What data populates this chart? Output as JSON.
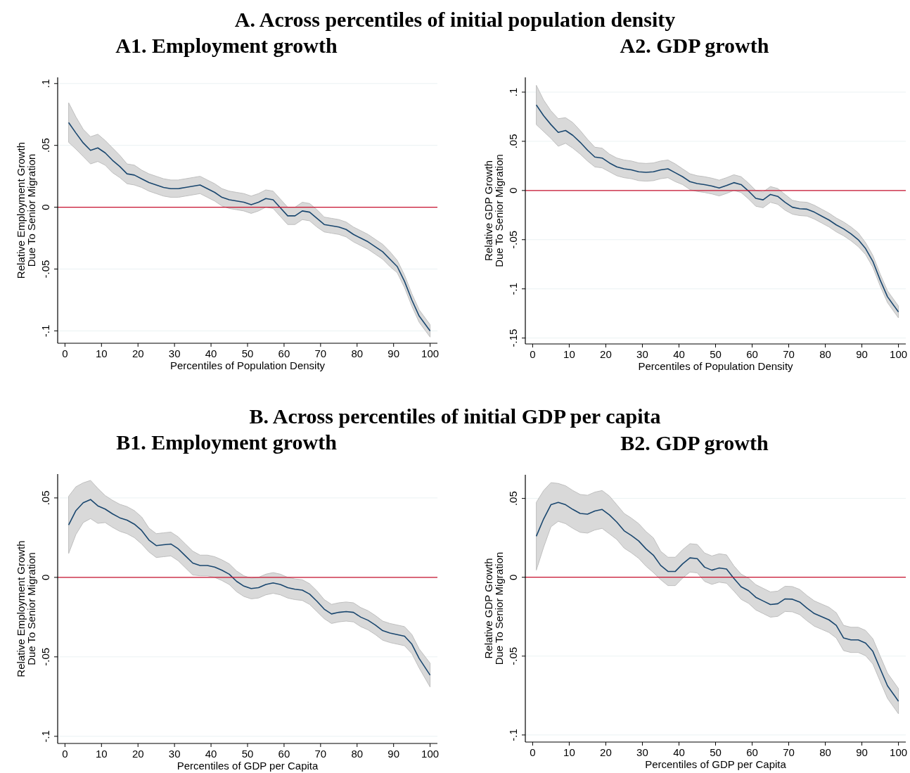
{
  "chart_data": [
    {
      "type": "line",
      "title": "A1. Employment growth",
      "annotations": [
        "A. Across percentiles of initial population density"
      ],
      "xlabel": "Percentiles of Population Density",
      "ylabel": "Relative Employment Growth\nDue To Senior Migration",
      "xlim": [
        -2,
        102
      ],
      "xticks": [
        0,
        10,
        20,
        30,
        40,
        50,
        60,
        70,
        80,
        90,
        100
      ],
      "ylim": [
        -0.11,
        0.105
      ],
      "yticks": [
        {
          "value": -0.1,
          "label": "-.1"
        },
        {
          "value": -0.05,
          "label": "-.05"
        },
        {
          "value": 0,
          "label": "0"
        },
        {
          "value": 0.05,
          "label": ".05"
        },
        {
          "value": 0.1,
          "label": ".1"
        }
      ],
      "grid": "y",
      "ref_lines": [
        {
          "axis": "y",
          "value": 0,
          "color": "#c8102e"
        }
      ],
      "x": [
        1,
        3,
        5,
        7,
        9,
        11,
        13,
        15,
        17,
        19,
        21,
        23,
        25,
        27,
        29,
        31,
        33,
        35,
        37,
        39,
        41,
        43,
        45,
        47,
        49,
        51,
        53,
        55,
        57,
        59,
        61,
        63,
        65,
        67,
        69,
        71,
        73,
        75,
        77,
        79,
        81,
        83,
        85,
        87,
        89,
        91,
        93,
        95,
        97,
        100
      ],
      "series": [
        {
          "color": "#1a476f",
          "values": [
            0.0685,
            0.06,
            0.052,
            0.046,
            0.048,
            0.044,
            0.038,
            0.033,
            0.027,
            0.026,
            0.023,
            0.02,
            0.018,
            0.016,
            0.015,
            0.015,
            0.016,
            0.017,
            0.018,
            0.015,
            0.012,
            0.008,
            0.006,
            0.005,
            0.004,
            0.002,
            0.004,
            0.007,
            0.006,
            -0.0005,
            -0.007,
            -0.007,
            -0.003,
            -0.004,
            -0.009,
            -0.014,
            -0.015,
            -0.016,
            -0.018,
            -0.022,
            -0.025,
            -0.028,
            -0.032,
            -0.036,
            -0.042,
            -0.048,
            -0.06,
            -0.075,
            -0.088,
            -0.1
          ],
          "lower": [
            0.0525,
            0.047,
            0.041,
            0.035,
            0.037,
            0.034,
            0.028,
            0.024,
            0.019,
            0.018,
            0.016,
            0.013,
            0.011,
            0.009,
            0.008,
            0.008,
            0.009,
            0.01,
            0.011,
            0.008,
            0.005,
            0.001,
            -0.001,
            -0.002,
            -0.003,
            -0.005,
            -0.003,
            0,
            -0.001,
            -0.0075,
            -0.014,
            -0.014,
            -0.01,
            -0.011,
            -0.016,
            -0.02,
            -0.021,
            -0.022,
            -0.024,
            -0.028,
            -0.031,
            -0.034,
            -0.038,
            -0.042,
            -0.048,
            -0.053,
            -0.065,
            -0.08,
            -0.093,
            -0.105
          ],
          "upper": [
            0.0845,
            0.073,
            0.063,
            0.057,
            0.059,
            0.054,
            0.048,
            0.042,
            0.035,
            0.034,
            0.03,
            0.027,
            0.025,
            0.023,
            0.022,
            0.022,
            0.023,
            0.024,
            0.025,
            0.022,
            0.019,
            0.015,
            0.013,
            0.012,
            0.011,
            0.009,
            0.011,
            0.014,
            0.013,
            0.0065,
            0,
            0,
            0.004,
            0.003,
            -0.002,
            -0.008,
            -0.009,
            -0.01,
            -0.012,
            -0.016,
            -0.019,
            -0.022,
            -0.026,
            -0.03,
            -0.036,
            -0.043,
            -0.055,
            -0.07,
            -0.083,
            -0.095
          ]
        }
      ]
    },
    {
      "type": "line",
      "title": "A2. GDP growth",
      "xlabel": "Percentiles of Population Density",
      "ylabel": "Relative GDP Growth\nDue To Senior Migration",
      "xlim": [
        -2,
        102
      ],
      "xticks": [
        0,
        10,
        20,
        30,
        40,
        50,
        60,
        70,
        80,
        90,
        100
      ],
      "ylim": [
        -0.156,
        0.115
      ],
      "yticks": [
        {
          "value": -0.15,
          "label": "-.15"
        },
        {
          "value": -0.1,
          "label": "-.1"
        },
        {
          "value": -0.05,
          "label": "-.05"
        },
        {
          "value": 0,
          "label": "0"
        },
        {
          "value": 0.05,
          "label": ".05"
        },
        {
          "value": 0.1,
          "label": ".1"
        }
      ],
      "grid": "y",
      "ref_lines": [
        {
          "axis": "y",
          "value": 0,
          "color": "#c8102e"
        }
      ],
      "x": [
        1,
        3,
        5,
        7,
        9,
        11,
        13,
        15,
        17,
        19,
        21,
        23,
        25,
        27,
        29,
        31,
        33,
        35,
        37,
        39,
        41,
        43,
        45,
        47,
        49,
        51,
        53,
        55,
        57,
        59,
        61,
        63,
        65,
        67,
        69,
        71,
        73,
        75,
        77,
        79,
        81,
        83,
        85,
        87,
        89,
        91,
        93,
        95,
        97,
        100
      ],
      "series": [
        {
          "color": "#1a476f",
          "values": [
            0.087,
            0.076,
            0.067,
            0.059,
            0.061,
            0.056,
            0.049,
            0.041,
            0.034,
            0.033,
            0.028,
            0.024,
            0.022,
            0.021,
            0.019,
            0.0185,
            0.019,
            0.021,
            0.022,
            0.018,
            0.014,
            0.009,
            0.007,
            0.006,
            0.0045,
            0.0025,
            0.005,
            0.008,
            0.006,
            -0.0005,
            -0.008,
            -0.0095,
            -0.004,
            -0.006,
            -0.012,
            -0.017,
            -0.0185,
            -0.019,
            -0.022,
            -0.026,
            -0.03,
            -0.035,
            -0.039,
            -0.044,
            -0.05,
            -0.059,
            -0.072,
            -0.091,
            -0.108,
            -0.1235
          ],
          "lower": [
            0.067,
            0.06,
            0.053,
            0.045,
            0.048,
            0.043,
            0.037,
            0.03,
            0.024,
            0.023,
            0.019,
            0.015,
            0.013,
            0.012,
            0.01,
            0.0095,
            0.01,
            0.012,
            0.013,
            0.009,
            0.006,
            0.001,
            -0.001,
            -0.002,
            -0.0035,
            -0.0055,
            -0.003,
            0,
            -0.002,
            -0.0085,
            -0.016,
            -0.0175,
            -0.012,
            -0.014,
            -0.02,
            -0.024,
            -0.0255,
            -0.026,
            -0.029,
            -0.033,
            -0.037,
            -0.042,
            -0.046,
            -0.051,
            -0.057,
            -0.065,
            -0.078,
            -0.097,
            -0.114,
            -0.1295
          ],
          "upper": [
            0.107,
            0.092,
            0.081,
            0.073,
            0.074,
            0.069,
            0.061,
            0.052,
            0.044,
            0.043,
            0.037,
            0.033,
            0.031,
            0.03,
            0.028,
            0.0275,
            0.028,
            0.03,
            0.031,
            0.027,
            0.022,
            0.017,
            0.015,
            0.014,
            0.0125,
            0.0105,
            0.013,
            0.016,
            0.014,
            0.0075,
            0,
            -0.0015,
            0.004,
            0.002,
            -0.004,
            -0.01,
            -0.0115,
            -0.012,
            -0.015,
            -0.019,
            -0.023,
            -0.028,
            -0.032,
            -0.037,
            -0.043,
            -0.053,
            -0.066,
            -0.085,
            -0.102,
            -0.1175
          ]
        }
      ]
    },
    {
      "type": "line",
      "title": "B1. Employment growth",
      "annotations": [
        "B. Across percentiles of initial GDP per capita"
      ],
      "xlabel": "Percentiles of GDP per Capita",
      "ylabel": "Relative Employment Growth\nDue To Senior Migration",
      "xlim": [
        -2,
        102
      ],
      "xticks": [
        0,
        10,
        20,
        30,
        40,
        50,
        60,
        70,
        80,
        90,
        100
      ],
      "ylim": [
        -0.1045,
        0.065
      ],
      "yticks": [
        {
          "value": -0.1,
          "label": "-.1"
        },
        {
          "value": -0.05,
          "label": "-.05"
        },
        {
          "value": 0,
          "label": "0"
        },
        {
          "value": 0.05,
          "label": ".05"
        }
      ],
      "grid": "y",
      "ref_lines": [
        {
          "axis": "y",
          "value": 0,
          "color": "#c8102e"
        }
      ],
      "x": [
        1,
        3,
        5,
        7,
        9,
        11,
        13,
        15,
        17,
        19,
        21,
        23,
        25,
        27,
        29,
        31,
        33,
        35,
        37,
        39,
        41,
        43,
        45,
        47,
        49,
        51,
        53,
        55,
        57,
        59,
        61,
        63,
        65,
        67,
        69,
        71,
        73,
        75,
        77,
        79,
        81,
        83,
        85,
        87,
        89,
        91,
        93,
        95,
        97,
        100
      ],
      "series": [
        {
          "color": "#1a476f",
          "values": [
            0.033,
            0.042,
            0.047,
            0.049,
            0.045,
            0.043,
            0.04,
            0.0375,
            0.036,
            0.0335,
            0.0295,
            0.0235,
            0.02,
            0.0205,
            0.021,
            0.018,
            0.0135,
            0.009,
            0.0075,
            0.0075,
            0.0065,
            0.0045,
            0.002,
            -0.0025,
            -0.0055,
            -0.007,
            -0.0065,
            -0.0045,
            -0.0035,
            -0.0045,
            -0.0065,
            -0.0075,
            -0.008,
            -0.0105,
            -0.015,
            -0.02,
            -0.023,
            -0.022,
            -0.0215,
            -0.022,
            -0.025,
            -0.027,
            -0.03,
            -0.0335,
            -0.035,
            -0.036,
            -0.037,
            -0.042,
            -0.051,
            -0.0615
          ],
          "lower": [
            0.015,
            0.027,
            0.0345,
            0.037,
            0.034,
            0.0345,
            0.0315,
            0.029,
            0.0275,
            0.025,
            0.021,
            0.016,
            0.0125,
            0.013,
            0.0135,
            0.0105,
            0.006,
            0.0015,
            0.001,
            0.001,
            0,
            -0.002,
            -0.0045,
            -0.009,
            -0.012,
            -0.0135,
            -0.013,
            -0.011,
            -0.01,
            -0.011,
            -0.013,
            -0.014,
            -0.0145,
            -0.017,
            -0.0215,
            -0.026,
            -0.029,
            -0.028,
            -0.0275,
            -0.028,
            -0.031,
            -0.033,
            -0.036,
            -0.0395,
            -0.041,
            -0.042,
            -0.043,
            -0.048,
            -0.057,
            -0.069
          ],
          "upper": [
            0.051,
            0.057,
            0.0595,
            0.061,
            0.056,
            0.0515,
            0.0485,
            0.046,
            0.0445,
            0.042,
            0.038,
            0.031,
            0.0275,
            0.028,
            0.0285,
            0.0255,
            0.021,
            0.0165,
            0.014,
            0.014,
            0.013,
            0.011,
            0.0085,
            0.004,
            0.001,
            -0.0005,
            0,
            0.002,
            0.003,
            0.002,
            0,
            -0.001,
            -0.0015,
            -0.004,
            -0.0085,
            -0.014,
            -0.017,
            -0.016,
            -0.0155,
            -0.016,
            -0.019,
            -0.021,
            -0.024,
            -0.0275,
            -0.029,
            -0.03,
            -0.031,
            -0.036,
            -0.045,
            -0.054
          ]
        }
      ]
    },
    {
      "type": "line",
      "title": "B2. GDP growth",
      "xlabel": "Percentiles of GDP per Capita",
      "ylabel": "Relative GDP Growth\nDue To Senior Migration",
      "xlim": [
        -2,
        102
      ],
      "xticks": [
        0,
        10,
        20,
        30,
        40,
        50,
        60,
        70,
        80,
        90,
        100
      ],
      "ylim": [
        -0.1045,
        0.065
      ],
      "yticks": [
        {
          "value": -0.1,
          "label": "-.1"
        },
        {
          "value": -0.05,
          "label": "-.05"
        },
        {
          "value": 0,
          "label": "0"
        },
        {
          "value": 0.05,
          "label": ".05"
        }
      ],
      "grid": "y",
      "ref_lines": [
        {
          "axis": "y",
          "value": 0,
          "color": "#c8102e"
        }
      ],
      "x": [
        1,
        3,
        5,
        7,
        9,
        11,
        13,
        15,
        17,
        19,
        21,
        23,
        25,
        27,
        29,
        31,
        33,
        35,
        37,
        39,
        41,
        43,
        45,
        47,
        49,
        51,
        53,
        55,
        57,
        59,
        61,
        63,
        65,
        67,
        69,
        71,
        73,
        75,
        77,
        79,
        81,
        83,
        85,
        87,
        89,
        91,
        93,
        95,
        97,
        100
      ],
      "series": [
        {
          "color": "#1a476f",
          "values": [
            0.026,
            0.037,
            0.046,
            0.0475,
            0.046,
            0.043,
            0.0405,
            0.04,
            0.042,
            0.043,
            0.0395,
            0.035,
            0.0295,
            0.0265,
            0.023,
            0.018,
            0.014,
            0.0075,
            0.0037,
            0.0037,
            0.0085,
            0.0123,
            0.0118,
            0.0064,
            0.0045,
            0.0059,
            0.0052,
            -0.0007,
            -0.006,
            -0.0085,
            -0.0127,
            -0.015,
            -0.0173,
            -0.0168,
            -0.0137,
            -0.0139,
            -0.0157,
            -0.0196,
            -0.023,
            -0.025,
            -0.027,
            -0.0305,
            -0.0385,
            -0.0397,
            -0.0397,
            -0.0417,
            -0.047,
            -0.058,
            -0.0688,
            -0.0786
          ],
          "lower": [
            0.0045,
            0.019,
            0.032,
            0.0355,
            0.034,
            0.031,
            0.0285,
            0.028,
            0.03,
            0.031,
            0.0275,
            0.024,
            0.0185,
            0.0155,
            0.012,
            0.007,
            0.003,
            -0.0015,
            -0.0053,
            -0.0053,
            -0.0005,
            0.0033,
            0.0028,
            -0.0026,
            -0.0045,
            -0.0031,
            -0.0038,
            -0.0087,
            -0.014,
            -0.0165,
            -0.0207,
            -0.023,
            -0.0253,
            -0.0248,
            -0.0217,
            -0.0219,
            -0.0237,
            -0.0276,
            -0.031,
            -0.033,
            -0.035,
            -0.0385,
            -0.0465,
            -0.0477,
            -0.0477,
            -0.0497,
            -0.055,
            -0.066,
            -0.0768,
            -0.0866
          ],
          "upper": [
            0.0475,
            0.055,
            0.06,
            0.0595,
            0.058,
            0.055,
            0.0525,
            0.052,
            0.054,
            0.055,
            0.0515,
            0.046,
            0.0405,
            0.0375,
            0.034,
            0.029,
            0.025,
            0.0165,
            0.0127,
            0.0127,
            0.0175,
            0.0213,
            0.0208,
            0.0154,
            0.0135,
            0.0149,
            0.0142,
            0.0073,
            0.002,
            -0.0005,
            -0.0047,
            -0.007,
            -0.0093,
            -0.0088,
            -0.0057,
            -0.0059,
            -0.0077,
            -0.0116,
            -0.015,
            -0.017,
            -0.019,
            -0.0225,
            -0.0305,
            -0.0317,
            -0.0317,
            -0.0337,
            -0.039,
            -0.05,
            -0.0608,
            -0.0706
          ]
        }
      ]
    }
  ]
}
